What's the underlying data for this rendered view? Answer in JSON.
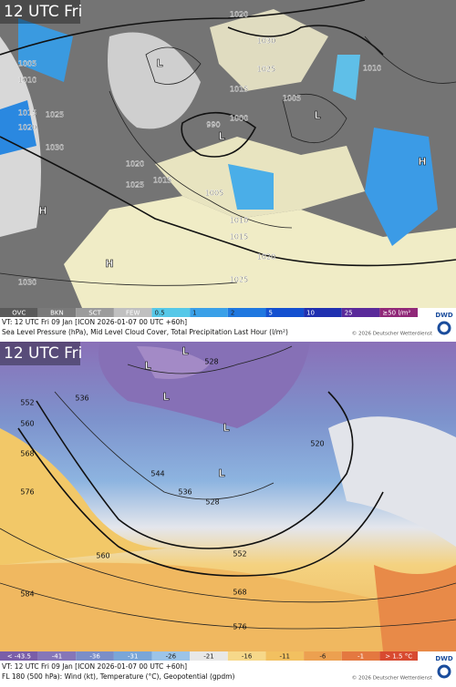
{
  "panels": [
    {
      "time_label": "12 UTC Fri",
      "legend": [
        {
          "label": "OVC",
          "color": "#5a5a5a"
        },
        {
          "label": "BKN",
          "color": "#7a7a7a"
        },
        {
          "label": "SCT",
          "color": "#9c9c9c"
        },
        {
          "label": "FEW",
          "color": "#c0c0c0"
        },
        {
          "label": "0.5",
          "color": "#56c8e8"
        },
        {
          "label": "1",
          "color": "#3aa0e8"
        },
        {
          "label": "2",
          "color": "#1f78e0"
        },
        {
          "label": "5",
          "color": "#1450d0"
        },
        {
          "label": "10",
          "color": "#2030b0"
        },
        {
          "label": "25",
          "color": "#5a2a9a"
        },
        {
          "label": "≥50 l/m²",
          "color": "#902878"
        }
      ],
      "valid_time": "VT: 12 UTC Fri  09 Jan [ICON 2026-01-07 00 UTC +60h]",
      "description": "Sea Level Pressure (hPa), Mid Level Cloud Cover, Total Precipitation Last Hour (l/m²)",
      "copyright": "© 2026 Deutscher Wetterdienst",
      "logo": "DWD",
      "contour_labels": [
        "1020",
        "1030",
        "1005",
        "1010",
        "1025",
        "1015",
        "1010",
        "1005",
        "1015",
        "1025",
        "1020",
        "1030",
        "1020",
        "1015",
        "1025",
        "1005",
        "1010",
        "1015",
        "1020",
        "1025",
        "1030",
        "990",
        "1000"
      ],
      "centers": [
        "L",
        "L",
        "L",
        "H",
        "H",
        "H"
      ]
    },
    {
      "time_label": "12 UTC Fri",
      "legend": [
        {
          "label": "< -43.5",
          "color": "#7a5ea8"
        },
        {
          "label": "-41",
          "color": "#8676b8"
        },
        {
          "label": "-36",
          "color": "#7b8ec8"
        },
        {
          "label": "-31",
          "color": "#7aa6d8"
        },
        {
          "label": "-26",
          "color": "#9cc4e8"
        },
        {
          "label": "-21",
          "color": "#e8e8e8"
        },
        {
          "label": "-16",
          "color": "#f6d88a"
        },
        {
          "label": "-11",
          "color": "#f2c060"
        },
        {
          "label": "-6",
          "color": "#eca050"
        },
        {
          "label": "-1",
          "color": "#e47840"
        },
        {
          "label": "> 1.5 °C",
          "color": "#d84a30"
        }
      ],
      "valid_time": "VT: 12 UTC Fri  09 Jan [ICON 2026-01-07 00 UTC +60h]",
      "description": "FL 180 (500 hPa): Wind (kt), Temperature (°C), Geopotential (gpdm)",
      "copyright": "© 2026 Deutscher Wetterdienst",
      "logo": "DWD",
      "contour_labels": [
        "528",
        "536",
        "552",
        "560",
        "568",
        "576",
        "584",
        "528",
        "536",
        "544",
        "552",
        "560",
        "568",
        "576",
        "520"
      ],
      "centers": [
        "L",
        "L",
        "L",
        "L",
        "L"
      ]
    }
  ]
}
